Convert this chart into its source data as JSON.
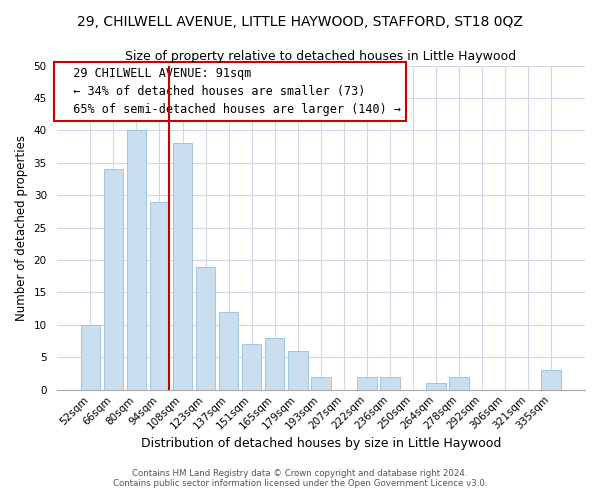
{
  "title": "29, CHILWELL AVENUE, LITTLE HAYWOOD, STAFFORD, ST18 0QZ",
  "subtitle": "Size of property relative to detached houses in Little Haywood",
  "xlabel": "Distribution of detached houses by size in Little Haywood",
  "ylabel": "Number of detached properties",
  "bar_labels": [
    "52sqm",
    "66sqm",
    "80sqm",
    "94sqm",
    "108sqm",
    "123sqm",
    "137sqm",
    "151sqm",
    "165sqm",
    "179sqm",
    "193sqm",
    "207sqm",
    "222sqm",
    "236sqm",
    "250sqm",
    "264sqm",
    "278sqm",
    "292sqm",
    "306sqm",
    "321sqm",
    "335sqm"
  ],
  "bar_values": [
    10,
    34,
    40,
    29,
    38,
    19,
    12,
    7,
    8,
    6,
    2,
    0,
    2,
    2,
    0,
    1,
    2,
    0,
    0,
    0,
    3
  ],
  "bar_color": "#c9dff0",
  "bar_edge_color": "#a0c4e0",
  "vline_x_index": 3,
  "vline_color": "#cc0000",
  "ylim": [
    0,
    50
  ],
  "annotation_title": "29 CHILWELL AVENUE: 91sqm",
  "annotation_line1": "← 34% of detached houses are smaller (73)",
  "annotation_line2": "65% of semi-detached houses are larger (140) →",
  "annotation_box_color": "#ffffff",
  "annotation_box_edge": "#cc0000",
  "footer1": "Contains HM Land Registry data © Crown copyright and database right 2024.",
  "footer2": "Contains public sector information licensed under the Open Government Licence v3.0.",
  "title_fontsize": 10,
  "subtitle_fontsize": 9,
  "tick_fontsize": 7.5,
  "ylabel_fontsize": 8.5,
  "xlabel_fontsize": 9
}
